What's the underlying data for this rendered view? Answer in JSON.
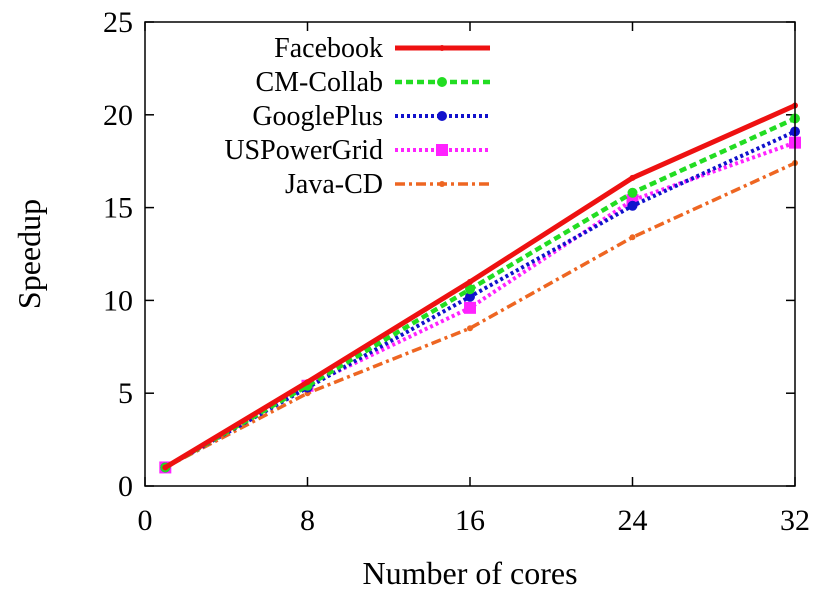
{
  "chart_data": {
    "type": "line",
    "title": "",
    "xlabel": "Number of cores",
    "ylabel": "Speedup",
    "xlim": [
      0,
      32
    ],
    "ylim": [
      0,
      25
    ],
    "xticks": [
      0,
      8,
      16,
      24,
      32
    ],
    "yticks": [
      0,
      5,
      10,
      15,
      20,
      25
    ],
    "grid": false,
    "legend_position": "top-left",
    "x": [
      1,
      8,
      16,
      24,
      32
    ],
    "series": [
      {
        "name": "Facebook",
        "color": "#ee1111",
        "style": "solid",
        "marker": "dot",
        "values": [
          1,
          5.6,
          11.0,
          16.6,
          20.5
        ]
      },
      {
        "name": "CM-Collab",
        "color": "#22dd22",
        "style": "dashed",
        "marker": "circle",
        "values": [
          1,
          5.4,
          10.6,
          15.8,
          19.8
        ]
      },
      {
        "name": "GooglePlus",
        "color": "#1111cc",
        "style": "dotted",
        "marker": "circle",
        "values": [
          1,
          5.3,
          10.2,
          15.1,
          19.1
        ]
      },
      {
        "name": "USPowerGrid",
        "color": "#ff22ff",
        "style": "dotted",
        "marker": "square",
        "values": [
          1,
          5.4,
          9.6,
          15.4,
          18.5
        ]
      },
      {
        "name": "Java-CD",
        "color": "#ee6622",
        "style": "dashdot",
        "marker": "dot",
        "values": [
          1,
          5.0,
          8.5,
          13.4,
          17.4
        ]
      }
    ]
  }
}
